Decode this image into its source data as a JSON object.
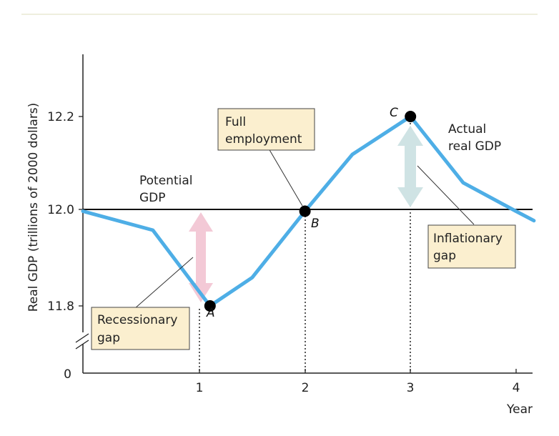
{
  "chart_data": {
    "type": "line",
    "ylabel": "Real GDP (trillions of 2000 dollars)",
    "xlabel": "Year",
    "x_ticks": [
      "1",
      "2",
      "3",
      "4"
    ],
    "y_ticks": [
      "11.8",
      "12.0",
      "12.2"
    ],
    "y_zero_label": "0",
    "xlim": [
      0,
      4.17
    ],
    "ylim": [
      11.8,
      12.2
    ],
    "series": [
      {
        "name": "Actual real GDP",
        "label_lines": [
          "Actual",
          "real GDP"
        ],
        "color": "#4eaee6",
        "x": [
          0,
          0.6,
          1.1,
          1.5,
          2.0,
          2.45,
          3.0,
          3.5,
          4.0,
          4.17
        ],
        "y": [
          12.0,
          11.96,
          11.8,
          11.86,
          12.0,
          12.12,
          12.2,
          12.06,
          12.0,
          11.98
        ]
      },
      {
        "name": "Potential GDP",
        "label_lines": [
          "Potential",
          "GDP"
        ],
        "color": "#111111",
        "x": [
          0,
          4.17
        ],
        "y": [
          12.0,
          12.0
        ]
      }
    ],
    "points": [
      {
        "label": "A",
        "x": 1.1,
        "y": 11.8
      },
      {
        "label": "B",
        "x": 2.0,
        "y": 12.0
      },
      {
        "label": "C",
        "x": 3.0,
        "y": 12.2
      }
    ],
    "annotations": {
      "full_employment": [
        "Full",
        "employment"
      ],
      "recessionary_gap": [
        "Recessionary",
        "gap"
      ],
      "inflationary_gap": [
        "Inflationary",
        "gap"
      ]
    },
    "colors": {
      "recessionary_arrow": "#f3c9d6",
      "inflationary_arrow": "#cfe3e4",
      "box_fill": "#fbefcf"
    }
  }
}
